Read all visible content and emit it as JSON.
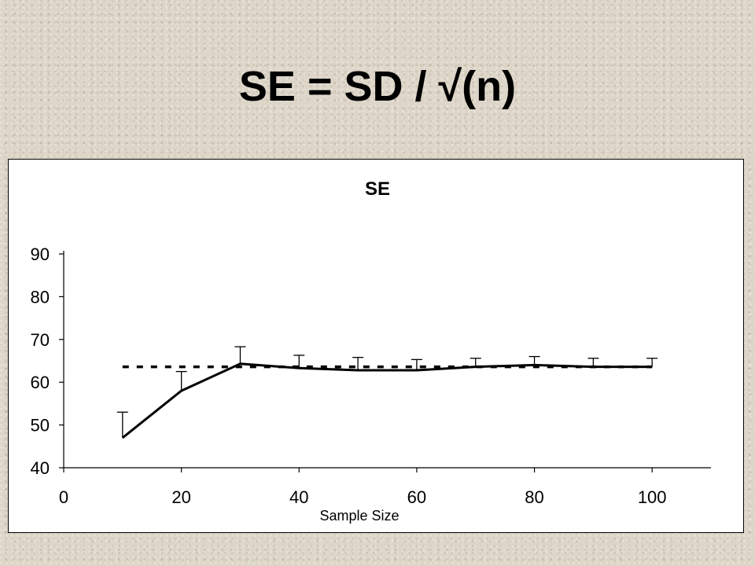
{
  "slide": {
    "title": "SE = SD / √(n)"
  },
  "chart_data": {
    "type": "line",
    "title": "SE",
    "xlabel": "Sample Size",
    "ylabel": "",
    "xlim": [
      0,
      110
    ],
    "ylim": [
      40,
      90
    ],
    "x_ticks": [
      0,
      20,
      40,
      60,
      80,
      100
    ],
    "y_ticks": [
      40,
      50,
      60,
      70,
      80,
      90
    ],
    "grid": false,
    "legend": "none",
    "series": [
      {
        "style": "solid",
        "color": "#000000",
        "x": [
          10,
          20,
          30,
          40,
          50,
          60,
          70,
          80,
          90,
          100
        ],
        "y": [
          47,
          58,
          64.3,
          63.3,
          62.8,
          62.8,
          63.6,
          64,
          63.6,
          63.6
        ],
        "error_plus": [
          6,
          4.5,
          4,
          3,
          3,
          2.5,
          2,
          2,
          2,
          2
        ]
      },
      {
        "style": "dashed",
        "color": "#000000",
        "x": [
          10,
          20,
          30,
          40,
          50,
          60,
          70,
          80,
          90,
          100
        ],
        "y": [
          63.6,
          63.6,
          63.6,
          63.6,
          63.6,
          63.6,
          63.6,
          63.6,
          63.6,
          63.6
        ]
      }
    ]
  }
}
